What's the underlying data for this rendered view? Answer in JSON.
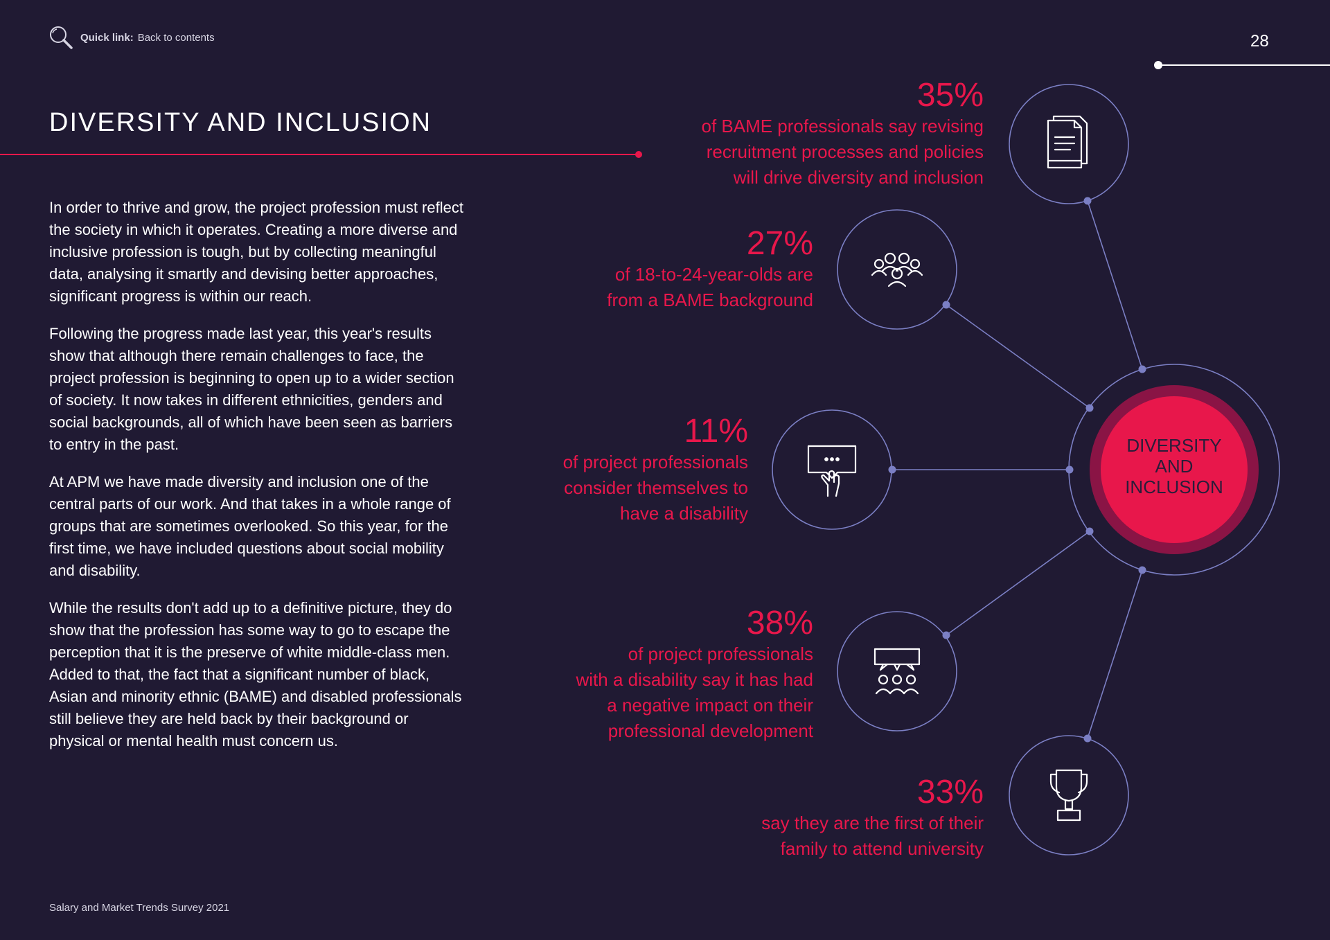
{
  "header": {
    "quick_link_label": "Quick link:",
    "quick_link_text": "Back to contents",
    "page_number": "28"
  },
  "title": "DIVERSITY AND INCLUSION",
  "body_paragraphs": [
    "In order to thrive and grow, the project profession must reflect the society in which it operates. Creating a more diverse and inclusive profession is tough, but by collecting meaningful data, analysing it smartly and devising better approaches, significant progress is within our reach.",
    "Following the progress made last year, this year's results show that although there remain challenges to face, the project profession is beginning to open up to a wider section of society. It now takes in different ethnicities, genders and social backgrounds, all of which have been seen as barriers to entry in the past.",
    "At APM we have made diversity and inclusion one of the central parts of our work. And that takes in a whole range of groups that are sometimes overlooked. So this year, for the first time, we have included questions about social mobility and disability.",
    "While the results don't add up to a definitive picture, they do show that the profession has some way to go to escape the perception that it is the preserve of white middle-class men. Added to that, the fact that a significant number of black, Asian and minority ethnic (BAME) and disabled professionals still believe they are held back by their background or physical or mental health must concern us."
  ],
  "diagram": {
    "center_lines": [
      "DIVERSITY",
      "AND",
      "INCLUSION"
    ],
    "stats": [
      {
        "percent": "35%",
        "lines": [
          "of BAME professionals say revising",
          "recruitment processes and policies",
          "will drive diversity and inclusion"
        ],
        "icon": "documents-icon"
      },
      {
        "percent": "27%",
        "lines": [
          "of 18-to-24-year-olds are",
          "from a BAME background"
        ],
        "icon": "group-icon"
      },
      {
        "percent": "11%",
        "lines": [
          "of project professionals",
          "consider themselves to",
          "have a disability"
        ],
        "icon": "hand-sign-icon"
      },
      {
        "percent": "38%",
        "lines": [
          "of project professionals",
          "with a disability say it has had",
          "a negative impact on their",
          "professional development"
        ],
        "icon": "audience-speech-icon"
      },
      {
        "percent": "33%",
        "lines": [
          "say they are the first of their",
          "family to attend university"
        ],
        "icon": "trophy-icon"
      }
    ]
  },
  "footer": "Salary and Market Trends Survey 2021",
  "colors": {
    "background": "#201a33",
    "accent": "#e8174b",
    "line": "#7b7fc4"
  }
}
